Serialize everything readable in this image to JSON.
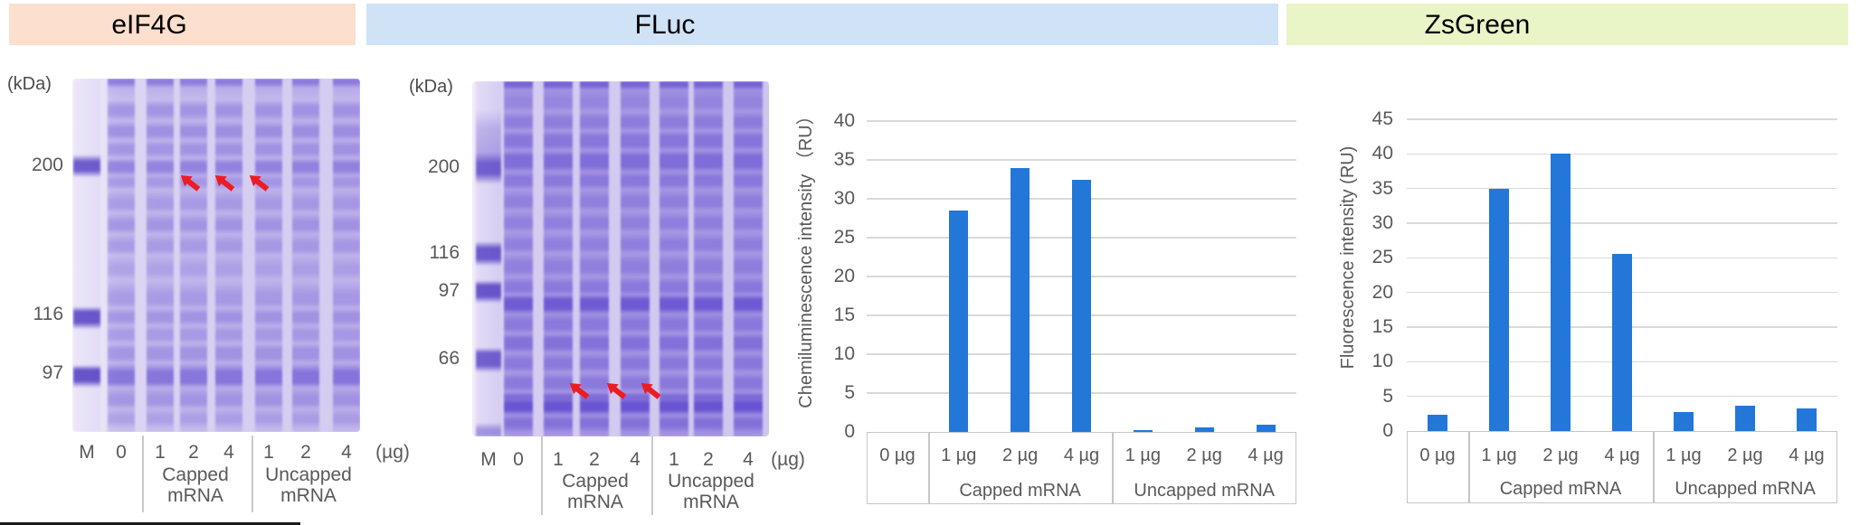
{
  "headers": [
    {
      "label": "eIF4G",
      "bg": "#fcdfcd"
    },
    {
      "label": "FLuc",
      "bg": "#cfe2f6"
    },
    {
      "label": "ZsGreen",
      "bg": "#e9f5c6"
    }
  ],
  "gels": [
    {
      "id": "eif4g",
      "kda_label": "(kDa)",
      "marker_labels": [
        "200",
        "116",
        "97"
      ],
      "lane_labels": [
        "M",
        "0",
        "1",
        "2",
        "4",
        "1",
        "2",
        "4"
      ],
      "amount_unit": "(µg)",
      "group_labels": [
        [
          "Capped",
          "mRNA"
        ],
        [
          "Uncapped",
          "mRNA"
        ]
      ],
      "arrow_count": 3
    },
    {
      "id": "fluc",
      "kda_label": "(kDa)",
      "marker_labels": [
        "200",
        "116",
        "97",
        "66"
      ],
      "lane_labels": [
        "M",
        "0",
        "1",
        "2",
        "4",
        "1",
        "2",
        "4"
      ],
      "amount_unit": "(µg)",
      "group_labels": [
        [
          "Capped",
          "mRNA"
        ],
        [
          "Uncapped",
          "mRNA"
        ]
      ],
      "arrow_count": 3
    }
  ],
  "chart_data": [
    {
      "type": "bar",
      "panel": "FLuc",
      "ylabel": "Chemiluminescence intensity （RU）",
      "categories": [
        "0 µg",
        "1 µg",
        "2 µg",
        "4 µg",
        "1 µg",
        "2 µg",
        "4 µg"
      ],
      "group_labels": [
        "Capped mRNA",
        "Uncapped mRNA"
      ],
      "group_spans": [
        [
          1,
          3
        ],
        [
          4,
          6
        ]
      ],
      "values": [
        0,
        28.5,
        34,
        32.5,
        0.2,
        0.6,
        0.9
      ],
      "ylim": [
        0,
        40
      ],
      "ytick_step": 5,
      "bar_color": "#2277d9",
      "grid": true,
      "legend": "none"
    },
    {
      "type": "bar",
      "panel": "ZsGreen",
      "ylabel": "Fluorescence intensity (RU)",
      "categories": [
        "0 µg",
        "1 µg",
        "2 µg",
        "4 µg",
        "1 µg",
        "2 µg",
        "4 µg"
      ],
      "group_labels": [
        "Capped mRNA",
        "Uncapped mRNA"
      ],
      "group_spans": [
        [
          1,
          3
        ],
        [
          4,
          6
        ]
      ],
      "values": [
        2.4,
        35,
        40,
        25.5,
        2.8,
        3.6,
        3.2
      ],
      "ylim": [
        0,
        45
      ],
      "ytick_step": 5,
      "bar_color": "#2277d9",
      "grid": true,
      "legend": "none"
    }
  ],
  "colors": {
    "axis_text": "#595959",
    "gridline": "#d9d9d9",
    "axis_box": "#c6c6c6",
    "bar": "#2277d9",
    "arrow_red": "#ec1c24"
  }
}
